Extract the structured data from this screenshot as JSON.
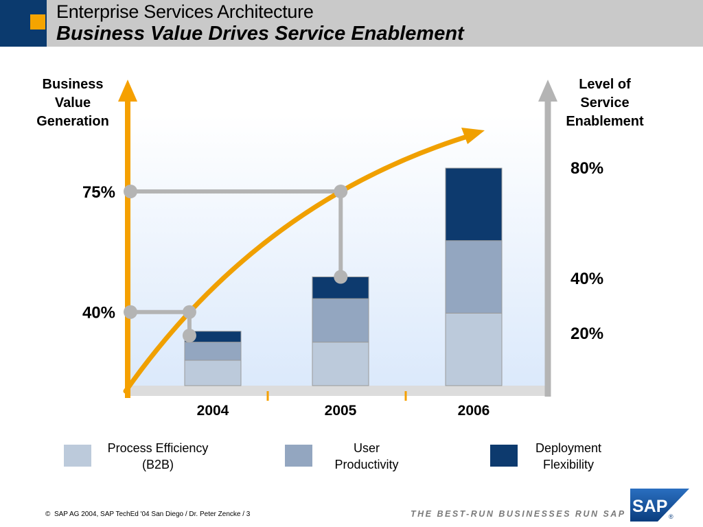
{
  "header": {
    "title": "Enterprise Services Architecture",
    "subtitle": "Business Value Drives Service Enablement"
  },
  "chart_data": {
    "type": "bar",
    "stacked": true,
    "categories": [
      "2004",
      "2005",
      "2006"
    ],
    "series": [
      {
        "name": "Process Efficiency (B2B)",
        "color": "#bccadb",
        "values": [
          7,
          12,
          20
        ]
      },
      {
        "name": "User Productivity",
        "color": "#93a6c0",
        "values": [
          5,
          12,
          20
        ]
      },
      {
        "name": "Deployment Flexibility",
        "color": "#0d3a6e",
        "values": [
          3,
          6,
          20
        ]
      }
    ],
    "y_axis_left": {
      "label": "Business Value Generation",
      "ticks": [
        {
          "value": 40,
          "label": "40%"
        },
        {
          "value": 75,
          "label": "75%"
        }
      ]
    },
    "y_axis_right": {
      "label": "Level of Service Enablement",
      "ticks": [
        {
          "value": 20,
          "label": "20%"
        },
        {
          "value": 40,
          "label": "40%"
        },
        {
          "value": 80,
          "label": "80%"
        }
      ]
    },
    "business_value_curve": {
      "color": "#f0a000"
    },
    "connectors": [
      {
        "category": "2004",
        "business_value": 40
      },
      {
        "category": "2005",
        "business_value": 75
      }
    ],
    "legend": {
      "position": "bottom"
    }
  },
  "footer": {
    "copyright_symbol": "©",
    "text": "SAP AG 2004, SAP TechEd '04 San Diego / Dr. Peter Zencke / 3",
    "tagline": "THE BEST-RUN BUSINESSES RUN SAP",
    "logo": "SAP",
    "logo_mark": "®"
  },
  "colors": {
    "header_gray": "#c9c9c9",
    "header_navy": "#0b3a6e",
    "accent_orange": "#f5a400",
    "axis_gray": "#b4b4b4"
  }
}
